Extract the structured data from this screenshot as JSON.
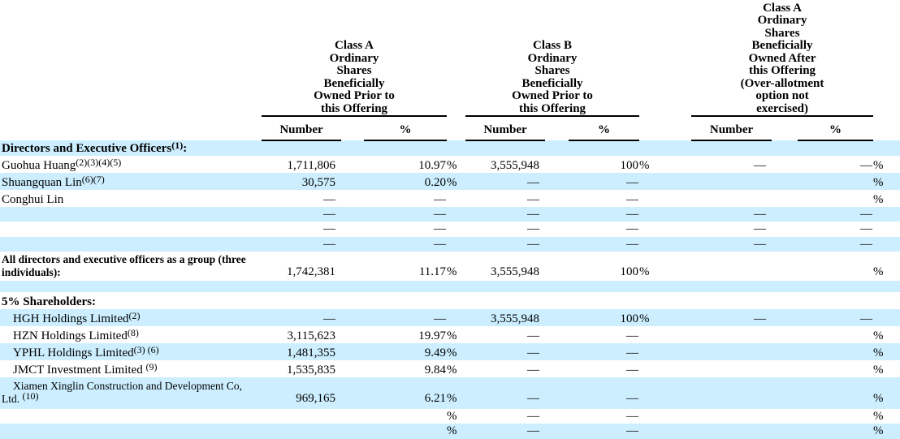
{
  "page": {
    "background_color": "#ffffff",
    "stripe_color": "#cceeff",
    "text_color": "#000000"
  },
  "table": {
    "column_groups": [
      {
        "title_lines": [
          "Class A",
          "Ordinary",
          "Shares",
          "Beneficially",
          "Owned Prior to",
          "this Offering"
        ],
        "number_label": "Number",
        "percent_label": "%"
      },
      {
        "title_lines": [
          "Class B",
          "Ordinary",
          "Shares",
          "Beneficially",
          "Owned Prior to",
          "this Offering"
        ],
        "number_label": "Number",
        "percent_label": "%"
      },
      {
        "title_lines": [
          "Class A",
          "Ordinary",
          "Shares",
          "Beneficially",
          "Owned After",
          "this Offering",
          "(Over-allotment",
          "option not",
          "exercised)"
        ],
        "number_label": "Number",
        "percent_label": "%"
      }
    ],
    "rows": [
      {
        "kind": "section",
        "bg": "blue",
        "lines": [
          {
            "indent": 0,
            "segments": [
              {
                "text": "Directors and Executive Officers"
              },
              {
                "sup": "(1)"
              },
              {
                "text": ":"
              }
            ]
          }
        ],
        "cells": [
          "",
          "",
          "",
          "",
          "",
          "",
          "",
          "",
          ""
        ]
      },
      {
        "kind": "person",
        "bg": "white",
        "lines": [
          {
            "indent": 0,
            "segments": [
              {
                "text": "Guohua Huang"
              },
              {
                "sup": "(2)(3)(4)(5)"
              }
            ]
          }
        ],
        "cells": [
          "1,711,806",
          "10.97",
          "%",
          "3,555,948",
          "100",
          "%",
          "—",
          "—",
          "%"
        ]
      },
      {
        "kind": "person",
        "bg": "blue",
        "lines": [
          {
            "indent": 0,
            "segments": [
              {
                "text": "Shuangquan Lin"
              },
              {
                "sup": "(6)(7)"
              }
            ]
          }
        ],
        "cells": [
          "30,575",
          "0.20",
          "%",
          "—",
          "—",
          "",
          "",
          "",
          "%"
        ]
      },
      {
        "kind": "person",
        "bg": "white",
        "lines": [
          {
            "indent": 0,
            "segments": [
              {
                "text": "Conghui Lin"
              }
            ]
          }
        ],
        "cells": [
          "—",
          "—",
          "",
          "—",
          "—",
          "",
          "",
          "",
          "%"
        ]
      },
      {
        "kind": "blank",
        "bg": "blue",
        "lines": [],
        "cells": [
          "—",
          "—",
          "",
          "—",
          "—",
          "",
          "—",
          "—",
          ""
        ]
      },
      {
        "kind": "blank",
        "bg": "white",
        "lines": [],
        "cells": [
          "—",
          "—",
          "",
          "—",
          "—",
          "",
          "—",
          "—",
          ""
        ]
      },
      {
        "kind": "blank",
        "bg": "blue",
        "lines": [],
        "cells": [
          "—",
          "—",
          "",
          "—",
          "—",
          "",
          "—",
          "—",
          ""
        ]
      },
      {
        "kind": "group-total",
        "bg": "white",
        "lines": [
          {
            "indent": 0,
            "segments": [
              {
                "text": "All directors and executive officers as a group (three"
              }
            ]
          },
          {
            "indent": 0,
            "segments": [
              {
                "text": "individuals):"
              }
            ]
          }
        ],
        "cells": [
          "1,742,381",
          "11.17",
          "%",
          "3,555,948",
          "100",
          "%",
          "",
          "",
          "%"
        ]
      },
      {
        "kind": "blank",
        "bg": "blue",
        "lines": [],
        "cells": [
          "",
          "",
          "",
          "",
          "",
          "",
          "",
          "",
          ""
        ]
      },
      {
        "kind": "section5",
        "bg": "white",
        "lines": [
          {
            "indent": 0,
            "segments": [
              {
                "text": "5% Shareholders:"
              }
            ]
          }
        ],
        "cells": [
          "",
          "",
          "",
          "",
          "",
          "",
          "",
          "",
          ""
        ]
      },
      {
        "kind": "person",
        "bg": "blue",
        "lines": [
          {
            "indent": 1,
            "segments": [
              {
                "text": "HGH Holdings Limited"
              },
              {
                "sup": "(2)"
              }
            ]
          }
        ],
        "cells": [
          "—",
          "—",
          "",
          "3,555,948",
          "100",
          "%",
          "—",
          "—",
          ""
        ]
      },
      {
        "kind": "person",
        "bg": "white",
        "lines": [
          {
            "indent": 1,
            "segments": [
              {
                "text": "HZN Holdings Limited"
              },
              {
                "sup": "(8)"
              }
            ]
          }
        ],
        "cells": [
          "3,115,623",
          "19.97",
          "%",
          "—",
          "—",
          "",
          "",
          "",
          "%"
        ]
      },
      {
        "kind": "person",
        "bg": "blue",
        "lines": [
          {
            "indent": 1,
            "segments": [
              {
                "text": "YPHL Holdings Limited"
              },
              {
                "sup": "(3) (6)"
              }
            ]
          }
        ],
        "cells": [
          "1,481,355",
          "9.49",
          "%",
          "—",
          "—",
          "",
          "",
          "",
          "%"
        ]
      },
      {
        "kind": "person",
        "bg": "white",
        "lines": [
          {
            "indent": 1,
            "segments": [
              {
                "text": "JMCT Investment Limited "
              },
              {
                "sup": "(9)"
              }
            ]
          }
        ],
        "cells": [
          "1,535,835",
          "9.84",
          "%",
          "—",
          "—",
          "",
          "",
          "",
          "%"
        ]
      },
      {
        "kind": "wrap2",
        "bg": "blue",
        "lines": [
          {
            "indent": 1,
            "segments": [
              {
                "text": "Xiamen Xinglin Construction and Development Co,"
              }
            ]
          },
          {
            "indent": 0,
            "segments": [
              {
                "text": "Ltd. "
              },
              {
                "sup": "(10)"
              }
            ]
          }
        ],
        "cells": [
          "969,165",
          "6.21",
          "%",
          "—",
          "—",
          "",
          "",
          "",
          "%"
        ]
      },
      {
        "kind": "pctonly",
        "bg": "white",
        "lines": [],
        "cells": [
          "",
          "",
          "%",
          "—",
          "—",
          "",
          "",
          "",
          "%"
        ]
      },
      {
        "kind": "pctonly",
        "bg": "blue",
        "lines": [],
        "cells": [
          "",
          "",
          "%",
          "—",
          "—",
          "",
          "",
          "",
          "%"
        ]
      }
    ]
  }
}
